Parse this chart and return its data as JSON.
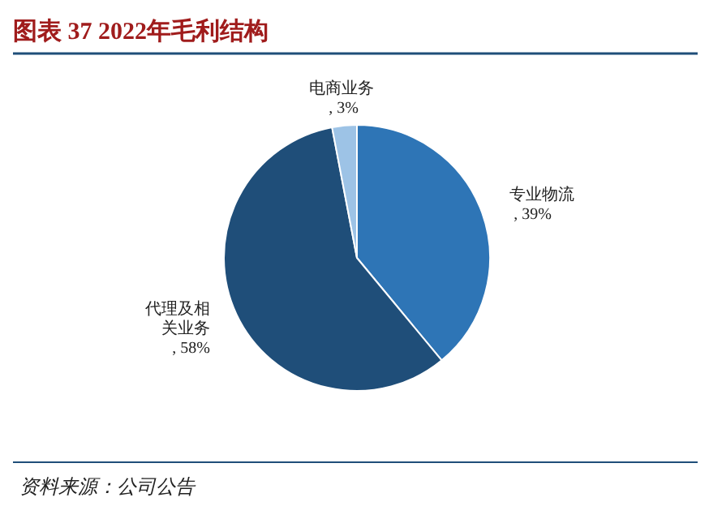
{
  "chart_data": {
    "type": "pie",
    "title": "图表 37   2022年毛利结构",
    "categories": [
      "专业物流",
      "代理及相关业务",
      "电商业务"
    ],
    "value_labels": [
      ", 39%",
      ", 58%",
      ", 3%"
    ],
    "values": [
      39,
      58,
      3
    ],
    "colors": [
      "#2e75b6",
      "#1f4e79",
      "#9dc3e6"
    ],
    "annotations": [
      "资料来源：公司公告"
    ]
  }
}
